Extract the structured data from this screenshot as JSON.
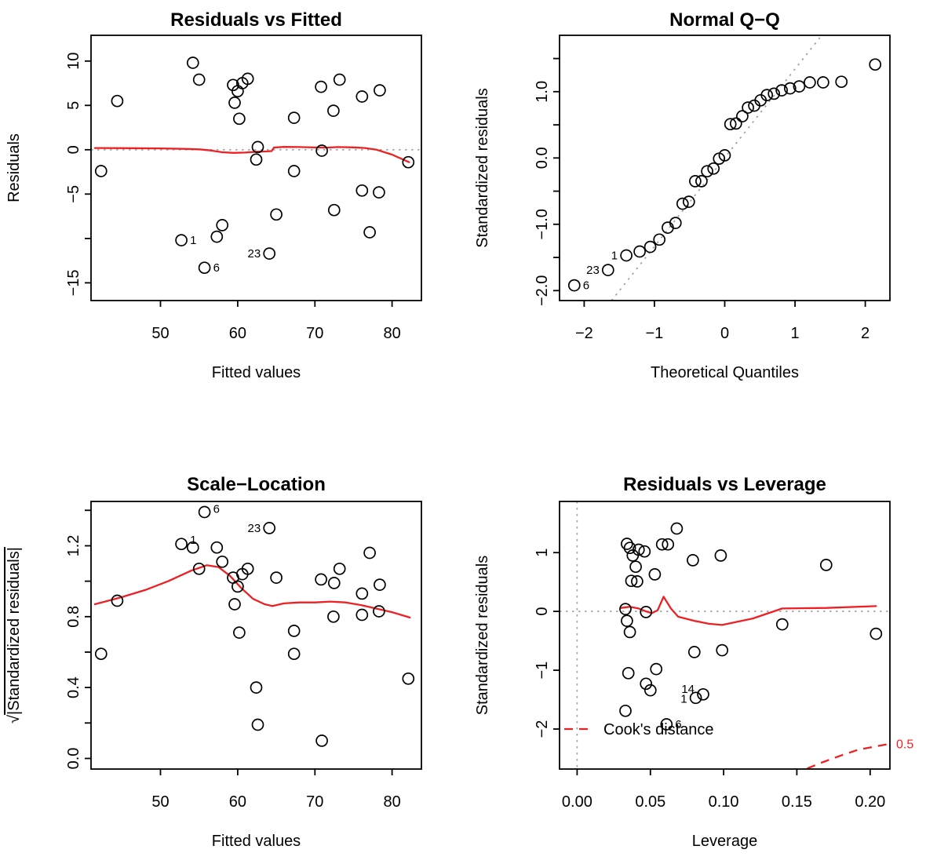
{
  "figure": {
    "description": "R regression diagnostic plots 2x2 grid",
    "background": "#ffffff"
  },
  "colors": {
    "accent": "#ed2024",
    "grid": "#9e9e9e",
    "ink": "#000000"
  },
  "chart_data": [
    {
      "type": "scatter",
      "title": "Residuals vs Fitted",
      "xlabel": "Fitted values",
      "ylabel": "Residuals",
      "xlim": [
        41.0,
        83.8
      ],
      "ylim": [
        -17.0,
        12.9
      ],
      "xticks": {
        "at": [
          50,
          60,
          70,
          80
        ],
        "labels": [
          "50",
          "60",
          "70",
          "80"
        ]
      },
      "yticks": {
        "at": [
          -15,
          -10,
          -5,
          0,
          5,
          10
        ],
        "labels": [
          "−15",
          "",
          "−5",
          "0",
          "5",
          "10"
        ]
      },
      "hlines": [
        0
      ],
      "smooth": [
        [
          41.5,
          0.2
        ],
        [
          46,
          0.18
        ],
        [
          50,
          0.15
        ],
        [
          53,
          0.1
        ],
        [
          55,
          0.05
        ],
        [
          56.5,
          -0.08
        ],
        [
          58,
          -0.28
        ],
        [
          59.5,
          -0.35
        ],
        [
          61,
          -0.32
        ],
        [
          62.5,
          -0.22
        ],
        [
          63.8,
          -0.18
        ],
        [
          64.4,
          -0.15
        ],
        [
          64.7,
          0.25
        ],
        [
          66,
          0.32
        ],
        [
          68,
          0.3
        ],
        [
          70,
          0.26
        ],
        [
          71.5,
          0.24
        ],
        [
          73,
          0.3
        ],
        [
          75,
          0.27
        ],
        [
          76.5,
          0.2
        ],
        [
          78,
          0.0
        ],
        [
          80,
          -0.55
        ],
        [
          82.2,
          -1.4
        ]
      ],
      "points": [
        [
          42.3,
          -2.4
        ],
        [
          44.4,
          5.5
        ],
        [
          52.7,
          -10.2
        ],
        [
          54.2,
          9.8
        ],
        [
          55.0,
          7.9
        ],
        [
          55.7,
          -13.3
        ],
        [
          57.3,
          -9.8
        ],
        [
          58.0,
          -8.5
        ],
        [
          59.4,
          7.3
        ],
        [
          59.6,
          5.3
        ],
        [
          60.0,
          6.6
        ],
        [
          60.2,
          3.5
        ],
        [
          60.6,
          7.5
        ],
        [
          61.3,
          8.0
        ],
        [
          62.4,
          -1.1
        ],
        [
          62.6,
          0.3
        ],
        [
          64.1,
          -11.7
        ],
        [
          65.0,
          -7.3
        ],
        [
          67.3,
          3.6
        ],
        [
          67.3,
          -2.4
        ],
        [
          70.8,
          7.1
        ],
        [
          70.9,
          -0.1
        ],
        [
          72.4,
          4.4
        ],
        [
          73.2,
          7.9
        ],
        [
          72.5,
          -6.8
        ],
        [
          76.1,
          6.0
        ],
        [
          76.1,
          -4.6
        ],
        [
          77.1,
          -9.3
        ],
        [
          78.4,
          6.7
        ],
        [
          78.3,
          -4.8
        ],
        [
          82.1,
          -1.4
        ]
      ],
      "point_labels": [
        {
          "x": 52.7,
          "y": -10.2,
          "text": "1",
          "side": "right"
        },
        {
          "x": 55.7,
          "y": -13.3,
          "text": "6",
          "side": "right"
        },
        {
          "x": 64.1,
          "y": -11.7,
          "text": "23",
          "side": "left"
        }
      ]
    },
    {
      "type": "scatter",
      "title": "Normal Q−Q",
      "xlabel": "Theoretical Quantiles",
      "ylabel": "Standardized residuals",
      "xlim": [
        -2.35,
        2.35
      ],
      "ylim": [
        -2.15,
        1.85
      ],
      "xticks": {
        "at": [
          -2,
          -1,
          0,
          1,
          2
        ],
        "labels": [
          "−2",
          "−1",
          "0",
          "1",
          "2"
        ]
      },
      "yticks": {
        "at": [
          -2,
          -1.5,
          -1,
          -0.5,
          0,
          0.5,
          1,
          1.5
        ],
        "labels": [
          "−2.0",
          "",
          "−1.0",
          "",
          "0.0",
          "",
          "1.0",
          ""
        ]
      },
      "abline": {
        "x1": -1.61,
        "y1": -2.15,
        "x2": 1.38,
        "y2": 1.85
      },
      "points": [
        [
          -2.14,
          -1.92
        ],
        [
          -1.66,
          -1.69
        ],
        [
          -1.4,
          -1.47
        ],
        [
          -1.21,
          -1.41
        ],
        [
          -1.06,
          -1.34
        ],
        [
          -0.93,
          -1.23
        ],
        [
          -0.81,
          -1.05
        ],
        [
          -0.7,
          -0.98
        ],
        [
          -0.6,
          -0.69
        ],
        [
          -0.51,
          -0.66
        ],
        [
          -0.42,
          -0.35
        ],
        [
          -0.33,
          -0.35
        ],
        [
          -0.25,
          -0.2
        ],
        [
          -0.16,
          -0.16
        ],
        [
          -0.08,
          -0.01
        ],
        [
          0.0,
          0.04
        ],
        [
          0.08,
          0.51
        ],
        [
          0.16,
          0.52
        ],
        [
          0.25,
          0.63
        ],
        [
          0.33,
          0.76
        ],
        [
          0.42,
          0.79
        ],
        [
          0.51,
          0.87
        ],
        [
          0.6,
          0.95
        ],
        [
          0.7,
          0.97
        ],
        [
          0.81,
          1.02
        ],
        [
          0.93,
          1.05
        ],
        [
          1.06,
          1.08
        ],
        [
          1.21,
          1.14
        ],
        [
          1.4,
          1.14
        ],
        [
          1.66,
          1.15
        ],
        [
          2.14,
          1.41
        ]
      ],
      "point_labels": [
        {
          "x": -2.14,
          "y": -1.92,
          "text": "6",
          "side": "right"
        },
        {
          "x": -1.66,
          "y": -1.69,
          "text": "23",
          "side": "left"
        },
        {
          "x": -1.4,
          "y": -1.47,
          "text": "1",
          "side": "left"
        }
      ]
    },
    {
      "type": "scatter",
      "title": "Scale−Location",
      "xlabel": "Fitted values",
      "ylabel": "√|Standardized residuals|",
      "ylabel_sqrt": true,
      "xlim": [
        41.0,
        83.8
      ],
      "ylim": [
        -0.06,
        1.45
      ],
      "xticks": {
        "at": [
          50,
          60,
          70,
          80
        ],
        "labels": [
          "50",
          "60",
          "70",
          "80"
        ]
      },
      "yticks": {
        "at": [
          0,
          0.2,
          0.4,
          0.6,
          0.8,
          1.0,
          1.2,
          1.4
        ],
        "labels": [
          "0.0",
          "",
          "0.4",
          "",
          "0.8",
          "",
          "1.2",
          ""
        ]
      },
      "smooth": [
        [
          41.5,
          0.87
        ],
        [
          45,
          0.91
        ],
        [
          48,
          0.95
        ],
        [
          51,
          1.0
        ],
        [
          54,
          1.06
        ],
        [
          56,
          1.09
        ],
        [
          57.5,
          1.08
        ],
        [
          59,
          1.03
        ],
        [
          60.5,
          0.96
        ],
        [
          62,
          0.9
        ],
        [
          63.5,
          0.87
        ],
        [
          64.5,
          0.86
        ],
        [
          66,
          0.875
        ],
        [
          68,
          0.88
        ],
        [
          70,
          0.88
        ],
        [
          72,
          0.885
        ],
        [
          74,
          0.88
        ],
        [
          76,
          0.865
        ],
        [
          78,
          0.845
        ],
        [
          80,
          0.825
        ],
        [
          82.3,
          0.795
        ]
      ],
      "points": [
        [
          42.3,
          0.59
        ],
        [
          44.4,
          0.89
        ],
        [
          52.7,
          1.21
        ],
        [
          54.2,
          1.19
        ],
        [
          55.0,
          1.07
        ],
        [
          55.7,
          1.39
        ],
        [
          57.3,
          1.19
        ],
        [
          58.0,
          1.11
        ],
        [
          59.4,
          1.02
        ],
        [
          59.6,
          0.87
        ],
        [
          60.0,
          0.97
        ],
        [
          60.2,
          0.71
        ],
        [
          60.6,
          1.04
        ],
        [
          61.3,
          1.07
        ],
        [
          62.4,
          0.4
        ],
        [
          62.6,
          0.19
        ],
        [
          64.1,
          1.3
        ],
        [
          65.0,
          1.02
        ],
        [
          67.3,
          0.72
        ],
        [
          67.3,
          0.59
        ],
        [
          70.8,
          1.01
        ],
        [
          70.9,
          0.1
        ],
        [
          72.4,
          0.8
        ],
        [
          73.2,
          1.07
        ],
        [
          72.5,
          0.99
        ],
        [
          76.1,
          0.93
        ],
        [
          76.1,
          0.81
        ],
        [
          77.1,
          1.16
        ],
        [
          78.4,
          0.98
        ],
        [
          78.3,
          0.83
        ],
        [
          82.1,
          0.45
        ]
      ],
      "point_labels": [
        {
          "x": 55.7,
          "y": 1.39,
          "text": "6",
          "side": "right",
          "dy": 1
        },
        {
          "x": 64.1,
          "y": 1.3,
          "text": "23",
          "side": "left"
        },
        {
          "x": 52.7,
          "y": 1.21,
          "text": "1",
          "side": "right",
          "dy": 0
        }
      ]
    },
    {
      "type": "scatter",
      "title": "Residuals vs Leverage",
      "xlabel": "Leverage",
      "ylabel": "Standardized residuals",
      "xlim": [
        -0.012,
        0.2135
      ],
      "ylim": [
        -2.68,
        1.87
      ],
      "xticks": {
        "at": [
          0,
          0.05,
          0.1,
          0.15,
          0.2
        ],
        "labels": [
          "0.00",
          "0.05",
          "0.10",
          "0.15",
          "0.20"
        ]
      },
      "yticks": {
        "at": [
          -2,
          -1,
          0,
          1
        ],
        "labels": [
          "−2",
          "−1",
          "0",
          "1"
        ]
      },
      "hlines": [
        0
      ],
      "vlines": [
        0
      ],
      "smooth": [
        [
          0.03,
          0.06
        ],
        [
          0.036,
          0.08
        ],
        [
          0.042,
          0.05
        ],
        [
          0.047,
          0.0
        ],
        [
          0.051,
          -0.03
        ],
        [
          0.055,
          0.02
        ],
        [
          0.059,
          0.25
        ],
        [
          0.064,
          0.05
        ],
        [
          0.069,
          -0.09
        ],
        [
          0.08,
          -0.16
        ],
        [
          0.09,
          -0.21
        ],
        [
          0.099,
          -0.23
        ],
        [
          0.12,
          -0.12
        ],
        [
          0.14,
          0.05
        ],
        [
          0.17,
          0.06
        ],
        [
          0.204,
          0.09
        ]
      ],
      "dashed": [
        [
          0.157,
          -2.67
        ],
        [
          0.168,
          -2.56
        ],
        [
          0.18,
          -2.45
        ],
        [
          0.192,
          -2.35
        ],
        [
          0.2135,
          -2.25
        ]
      ],
      "points": [
        [
          0.14,
          -0.22
        ],
        [
          0.17,
          0.79
        ],
        [
          0.081,
          -1.47
        ],
        [
          0.068,
          1.41
        ],
        [
          0.058,
          1.14
        ],
        [
          0.061,
          -1.92
        ],
        [
          0.086,
          -1.41
        ],
        [
          0.047,
          -1.23
        ],
        [
          0.042,
          1.05
        ],
        [
          0.04,
          0.76
        ],
        [
          0.038,
          0.95
        ],
        [
          0.041,
          0.51
        ],
        [
          0.036,
          1.08
        ],
        [
          0.034,
          1.15
        ],
        [
          0.034,
          -0.16
        ],
        [
          0.033,
          0.04
        ],
        [
          0.033,
          -1.69
        ],
        [
          0.035,
          -1.05
        ],
        [
          0.037,
          0.52
        ],
        [
          0.036,
          -0.35
        ],
        [
          0.046,
          1.02
        ],
        [
          0.047,
          -0.01
        ],
        [
          0.053,
          0.63
        ],
        [
          0.062,
          1.14
        ],
        [
          0.054,
          -0.98
        ],
        [
          0.079,
          0.87
        ],
        [
          0.08,
          -0.69
        ],
        [
          0.05,
          -1.34
        ],
        [
          0.098,
          0.95
        ],
        [
          0.099,
          -0.66
        ],
        [
          0.204,
          -0.38
        ]
      ],
      "point_labels": [
        {
          "x": 0.061,
          "y": -1.92,
          "text": "6",
          "side": "right"
        },
        {
          "x": 0.081,
          "y": -1.47,
          "text": "1",
          "side": "left",
          "dy": 6
        },
        {
          "x": 0.086,
          "y": -1.41,
          "text": "14",
          "side": "left",
          "dy": -2
        }
      ],
      "legend": {
        "dash_y": -2.0,
        "label": "Cook's distance"
      },
      "annotations": [
        {
          "x": 0.2135,
          "y": -2.26,
          "text": "0.5",
          "color": "accent",
          "size": 16,
          "dx": 8
        }
      ]
    }
  ]
}
